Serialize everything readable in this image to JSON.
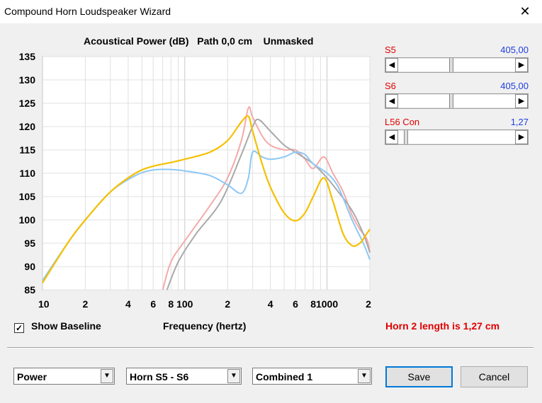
{
  "window": {
    "title": "Compound Horn Loudspeaker Wizard",
    "close_glyph": "✕"
  },
  "chart_data": {
    "type": "line",
    "title": "Acoustical Power (dB)   Path 0,0 cm    Unmasked",
    "xlabel": "Frequency (hertz)",
    "ylabel": "",
    "x_scale": "log",
    "xlim": [
      10,
      2000
    ],
    "ylim": [
      85,
      135
    ],
    "x_tick_labels": [
      {
        "x": 10,
        "label": "10"
      },
      {
        "x": 20,
        "label": "2"
      },
      {
        "x": 40,
        "label": "4"
      },
      {
        "x": 60,
        "label": "6"
      },
      {
        "x": 80,
        "label": "8"
      },
      {
        "x": 100,
        "label": "100"
      },
      {
        "x": 200,
        "label": "2"
      },
      {
        "x": 400,
        "label": "4"
      },
      {
        "x": 600,
        "label": "6"
      },
      {
        "x": 800,
        "label": "8"
      },
      {
        "x": 1000,
        "label": "1000"
      },
      {
        "x": 2000,
        "label": "2"
      }
    ],
    "y_ticks": [
      85,
      90,
      95,
      100,
      105,
      110,
      115,
      120,
      125,
      130,
      135
    ],
    "grid": true,
    "series": [
      {
        "color": "#f4aaaa",
        "points": [
          [
            70,
            85
          ],
          [
            80,
            91
          ],
          [
            100,
            95.5
          ],
          [
            150,
            103
          ],
          [
            200,
            109
          ],
          [
            250,
            117
          ],
          [
            280,
            124
          ],
          [
            300,
            122
          ],
          [
            350,
            118
          ],
          [
            400,
            116
          ],
          [
            500,
            115
          ],
          [
            600,
            115
          ],
          [
            700,
            113
          ],
          [
            800,
            111
          ],
          [
            950,
            113.5
          ],
          [
            1100,
            110
          ],
          [
            1300,
            106
          ],
          [
            1500,
            101
          ],
          [
            1700,
            98
          ],
          [
            1900,
            96
          ],
          [
            2000,
            93
          ]
        ]
      },
      {
        "color": "#a9a9a9",
        "points": [
          [
            75,
            85
          ],
          [
            90,
            91
          ],
          [
            120,
            97
          ],
          [
            180,
            104
          ],
          [
            250,
            114
          ],
          [
            300,
            120
          ],
          [
            330,
            121.5
          ],
          [
            400,
            119
          ],
          [
            500,
            116
          ],
          [
            600,
            114.5
          ],
          [
            800,
            112
          ],
          [
            1000,
            109
          ],
          [
            1200,
            106
          ],
          [
            1500,
            102
          ],
          [
            1800,
            97
          ],
          [
            2000,
            93
          ]
        ]
      },
      {
        "color": "#8dc8f4",
        "points": [
          [
            10,
            87
          ],
          [
            15,
            95
          ],
          [
            20,
            100
          ],
          [
            30,
            106
          ],
          [
            45,
            109.5
          ],
          [
            60,
            110.7
          ],
          [
            80,
            110.8
          ],
          [
            100,
            110.5
          ],
          [
            150,
            109.5
          ],
          [
            200,
            107.5
          ],
          [
            250,
            105.7
          ],
          [
            280,
            109
          ],
          [
            300,
            114.5
          ],
          [
            350,
            113.5
          ],
          [
            400,
            113
          ],
          [
            500,
            113.5
          ],
          [
            600,
            114.5
          ],
          [
            700,
            114
          ],
          [
            800,
            112
          ],
          [
            1000,
            110
          ],
          [
            1200,
            107
          ],
          [
            1500,
            100
          ],
          [
            1800,
            95
          ],
          [
            2000,
            91.5
          ]
        ]
      },
      {
        "color": "#f5c000",
        "points": [
          [
            10,
            86.5
          ],
          [
            15,
            95
          ],
          [
            20,
            100
          ],
          [
            30,
            106
          ],
          [
            45,
            110
          ],
          [
            60,
            111.5
          ],
          [
            80,
            112.3
          ],
          [
            100,
            113
          ],
          [
            150,
            114.5
          ],
          [
            200,
            117
          ],
          [
            250,
            121
          ],
          [
            280,
            122.2
          ],
          [
            300,
            119
          ],
          [
            350,
            112
          ],
          [
            400,
            107
          ],
          [
            500,
            101.5
          ],
          [
            600,
            99.8
          ],
          [
            700,
            101.5
          ],
          [
            800,
            105
          ],
          [
            950,
            109
          ],
          [
            1100,
            104
          ],
          [
            1300,
            97
          ],
          [
            1500,
            94.5
          ],
          [
            1700,
            95
          ],
          [
            1900,
            97
          ],
          [
            2000,
            98
          ]
        ]
      }
    ]
  },
  "sliders": [
    {
      "label": "S5",
      "value": "405,00",
      "position": 0.45
    },
    {
      "label": "S6",
      "value": "405,00",
      "position": 0.45
    },
    {
      "label": "L56  Con",
      "value": "1,27",
      "position": 0.05
    }
  ],
  "baseline": {
    "label": "Show Baseline",
    "checked": true,
    "check_glyph": "✓"
  },
  "status": {
    "horn_length": "Horn 2 length is 1,27 cm"
  },
  "combos": {
    "view": "Power",
    "horn": "Horn S5 - S6",
    "mode": "Combined 1",
    "arrow_glyph": "▼"
  },
  "buttons": {
    "save": "Save",
    "cancel": "Cancel"
  },
  "colors": {
    "label_red": "#e00000",
    "value_blue": "#1f3fe0"
  }
}
